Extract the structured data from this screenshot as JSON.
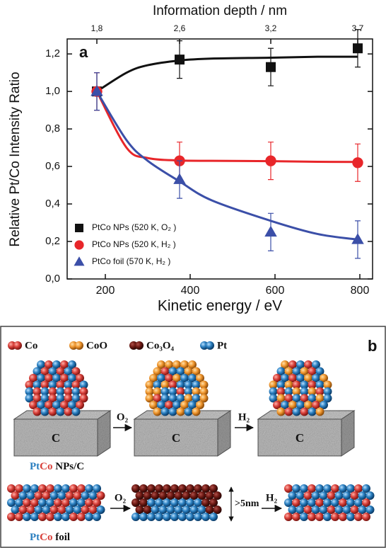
{
  "chart_data": {
    "type": "scatter",
    "panel_label": "a",
    "title": "Information depth / nm",
    "x_label": "Kinetic energy / eV",
    "y_label": "Relative Pt/Co Intensity Ratio",
    "xlim": [
      110,
      830
    ],
    "ylim": [
      0,
      1.28
    ],
    "xticks": [
      200,
      400,
      600,
      800
    ],
    "x2ticks": [
      {
        "value": 180,
        "label": "1,8"
      },
      {
        "value": 375,
        "label": "2,6"
      },
      {
        "value": 590,
        "label": "3,2"
      },
      {
        "value": 795,
        "label": "3,7"
      }
    ],
    "yticks": [
      {
        "value": 0,
        "label": "0,0"
      },
      {
        "value": 0.2,
        "label": "0,2"
      },
      {
        "value": 0.4,
        "label": "0,4"
      },
      {
        "value": 0.6,
        "label": "0,6"
      },
      {
        "value": 0.8,
        "label": "0,8"
      },
      {
        "value": 1.0,
        "label": "1,0"
      },
      {
        "value": 1.2,
        "label": "1,2"
      }
    ],
    "legend": "lower left",
    "x": [
      180,
      375,
      590,
      795
    ],
    "fit_x": [
      180,
      250,
      300,
      375,
      450,
      590,
      700,
      795
    ],
    "series": [
      {
        "name": "PtCo NPs (520 K, O₂ )",
        "color": "#111111",
        "marker": "square",
        "values": [
          1.0,
          1.17,
          1.13,
          1.23
        ],
        "errors": [
          0.1,
          0.1,
          0.1,
          0.1
        ],
        "fit": [
          1.0,
          1.1,
          1.14,
          1.165,
          1.175,
          1.18,
          1.185,
          1.185
        ]
      },
      {
        "name": "PtCo NPs (520 K, H₂ )",
        "color": "#e8262a",
        "marker": "circle",
        "values": [
          1.0,
          0.63,
          0.63,
          0.62
        ],
        "errors": [
          0.1,
          0.1,
          0.1,
          0.1
        ],
        "fit": [
          1.0,
          0.7,
          0.645,
          0.632,
          0.63,
          0.628,
          0.625,
          0.624
        ]
      },
      {
        "name": "PtCo foil (570 K, H₂ )",
        "color": "#3b4fa8",
        "marker": "triangle",
        "values": [
          1.0,
          0.53,
          0.25,
          0.21
        ],
        "errors": [
          0.1,
          0.1,
          0.1,
          0.1
        ],
        "fit": [
          1.0,
          0.74,
          0.63,
          0.52,
          0.42,
          0.31,
          0.24,
          0.21
        ]
      }
    ]
  },
  "diagram": {
    "label": "b",
    "legend": [
      "Co",
      "CoO",
      "Co₃O₄",
      "Pt"
    ],
    "supports": [
      "C",
      "C",
      "C"
    ],
    "row1_arrows": [
      "O₂",
      "H₂"
    ],
    "row2_arrows": [
      "O₂",
      "H₂"
    ],
    "thickness": ">5nm",
    "row1_name": [
      "Pt",
      "Co",
      " NPs/C"
    ],
    "row2_name": [
      "Pt",
      "Co",
      " foil"
    ]
  }
}
